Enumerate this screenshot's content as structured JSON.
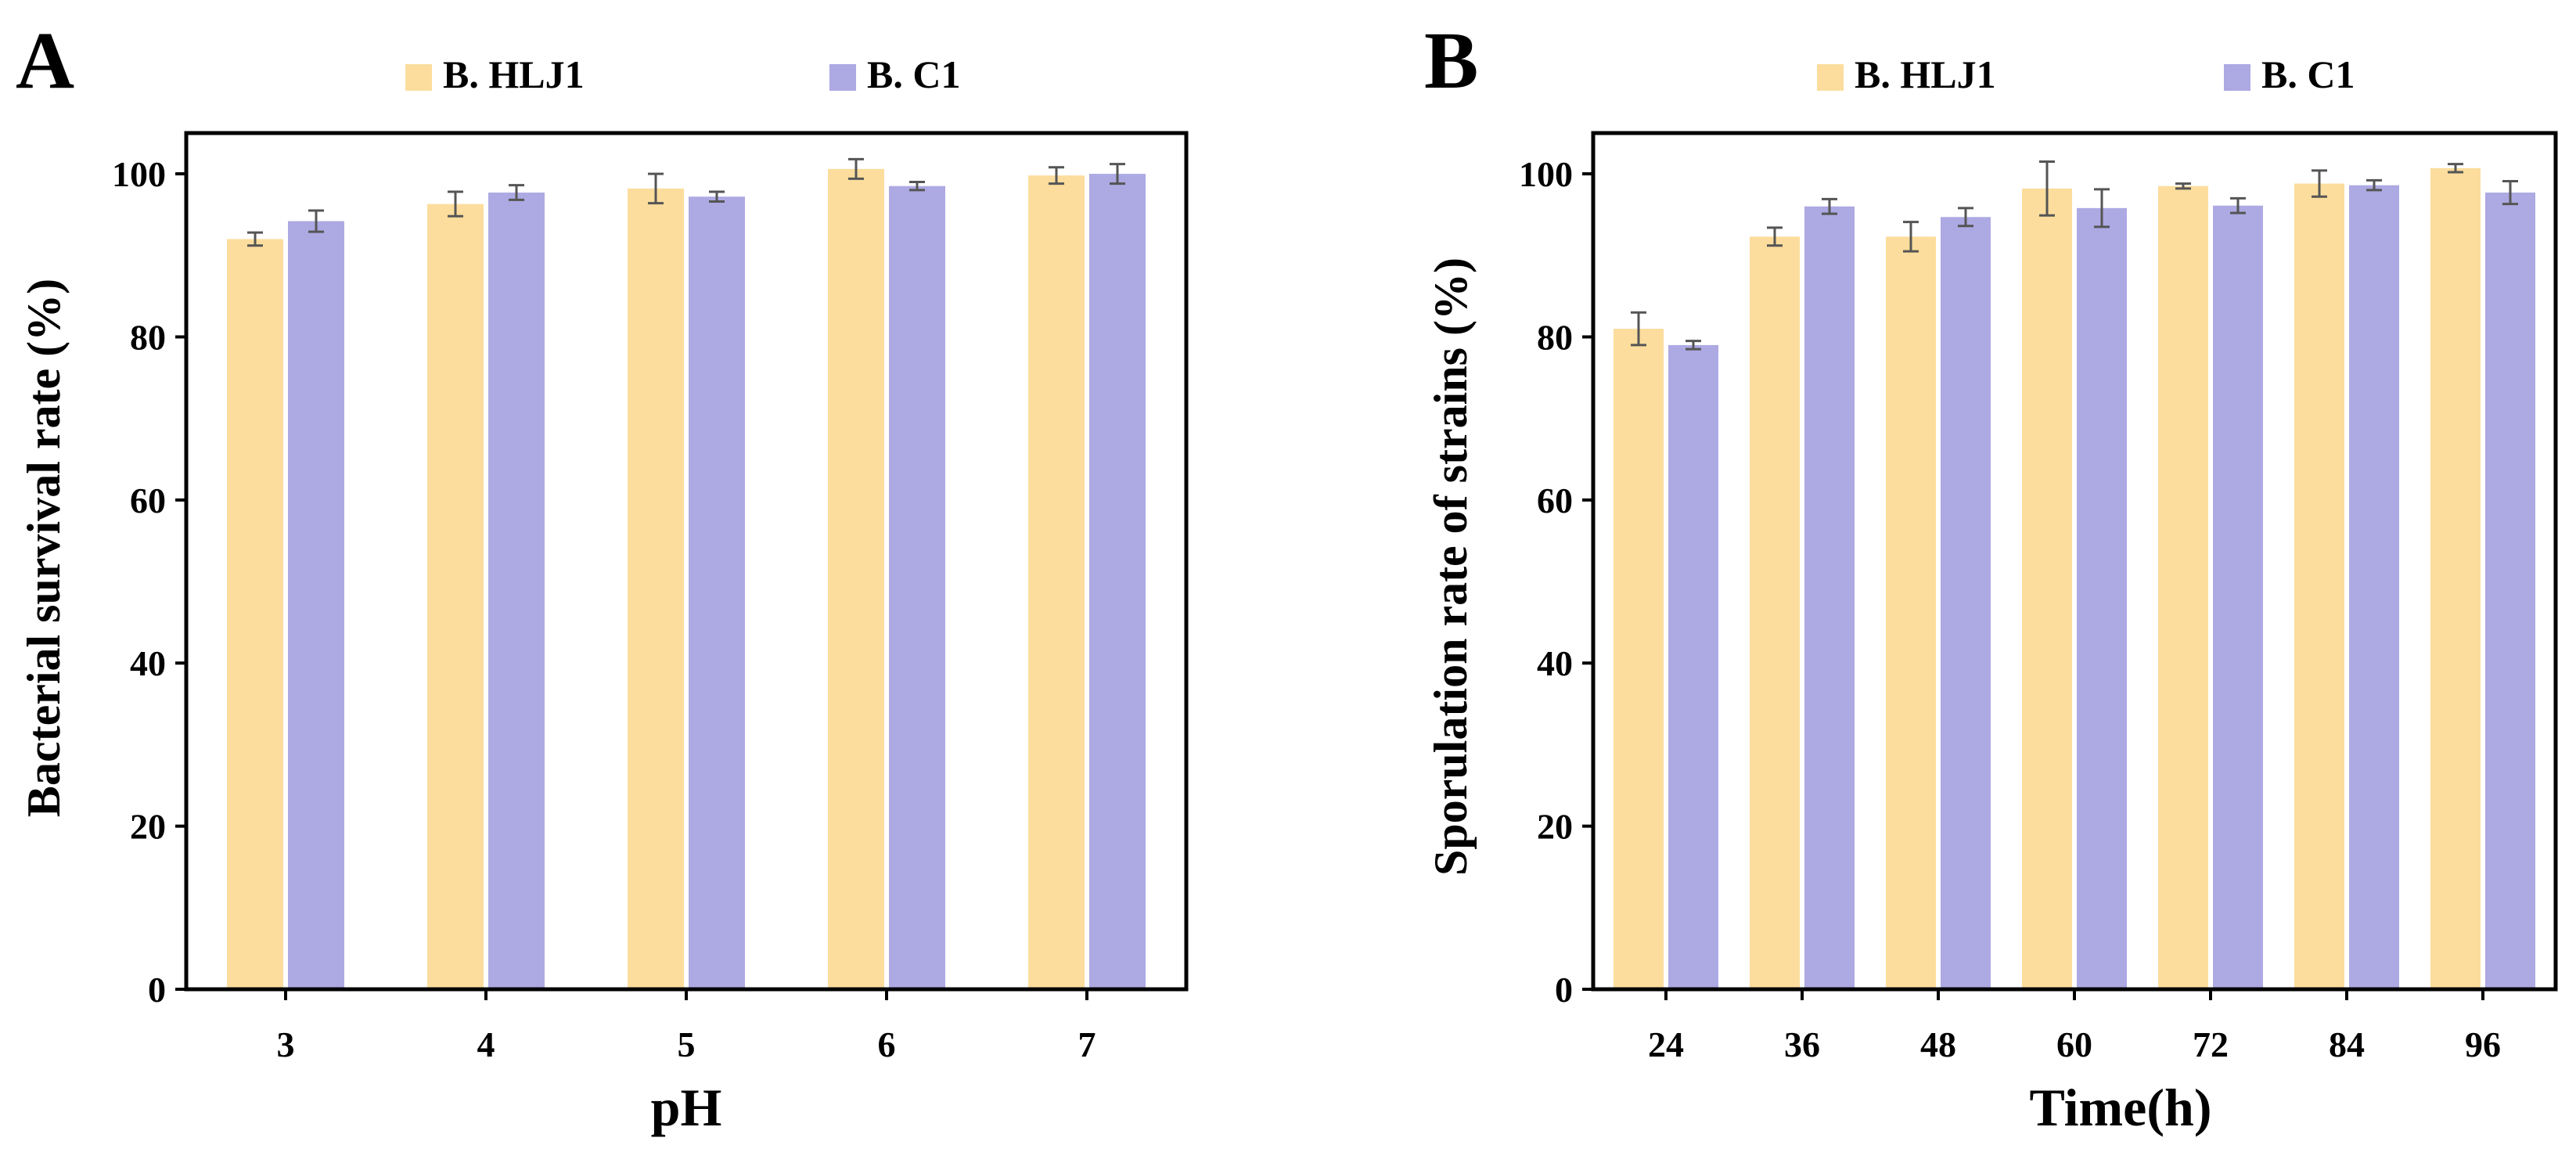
{
  "figure": {
    "panels": [
      "A",
      "B"
    ],
    "colors": {
      "B. HLJ1": "#FCDD9D",
      "B. C1": "#ADA9E3",
      "axis": "#000000",
      "error_bar": "#555555"
    }
  },
  "chart_data": [
    {
      "panel": "A",
      "type": "bar",
      "title": "",
      "xlabel": "pH",
      "ylabel": "Bacterial survival rate (%)",
      "categories": [
        "3",
        "4",
        "5",
        "6",
        "7"
      ],
      "ylim": [
        0,
        105
      ],
      "yticks": [
        0,
        20,
        40,
        60,
        80,
        100
      ],
      "legend": "top",
      "grid": false,
      "series": [
        {
          "name": "B. HLJ1",
          "color": "#FCDD9D",
          "values": [
            92,
            96.3,
            98.2,
            100.6,
            99.8
          ],
          "errors": [
            0.8,
            1.5,
            1.8,
            1.2,
            1.0
          ]
        },
        {
          "name": "B. C1",
          "color": "#ADA9E3",
          "values": [
            94.2,
            97.7,
            97.2,
            98.5,
            100.0
          ],
          "errors": [
            1.3,
            0.9,
            0.6,
            0.5,
            1.2
          ]
        }
      ]
    },
    {
      "panel": "B",
      "type": "bar",
      "title": "",
      "xlabel": "Time(h)",
      "ylabel": "Sporulation rate of strains (%)",
      "categories": [
        "24",
        "36",
        "48",
        "60",
        "72",
        "84",
        "96"
      ],
      "ylim": [
        0,
        105
      ],
      "yticks": [
        0,
        20,
        40,
        60,
        80,
        100
      ],
      "legend": "top",
      "grid": false,
      "series": [
        {
          "name": "B. HLJ1",
          "color": "#FCDD9D",
          "values": [
            81,
            92.3,
            92.3,
            98.2,
            98.5,
            98.8,
            100.7
          ],
          "errors": [
            2.0,
            1.1,
            1.8,
            3.3,
            0.3,
            1.6,
            0.5
          ]
        },
        {
          "name": "B. C1",
          "color": "#ADA9E3",
          "values": [
            79,
            96,
            94.7,
            95.8,
            96.1,
            98.6,
            97.7
          ],
          "errors": [
            0.5,
            0.9,
            1.1,
            2.3,
            0.9,
            0.6,
            1.4
          ]
        }
      ]
    }
  ]
}
